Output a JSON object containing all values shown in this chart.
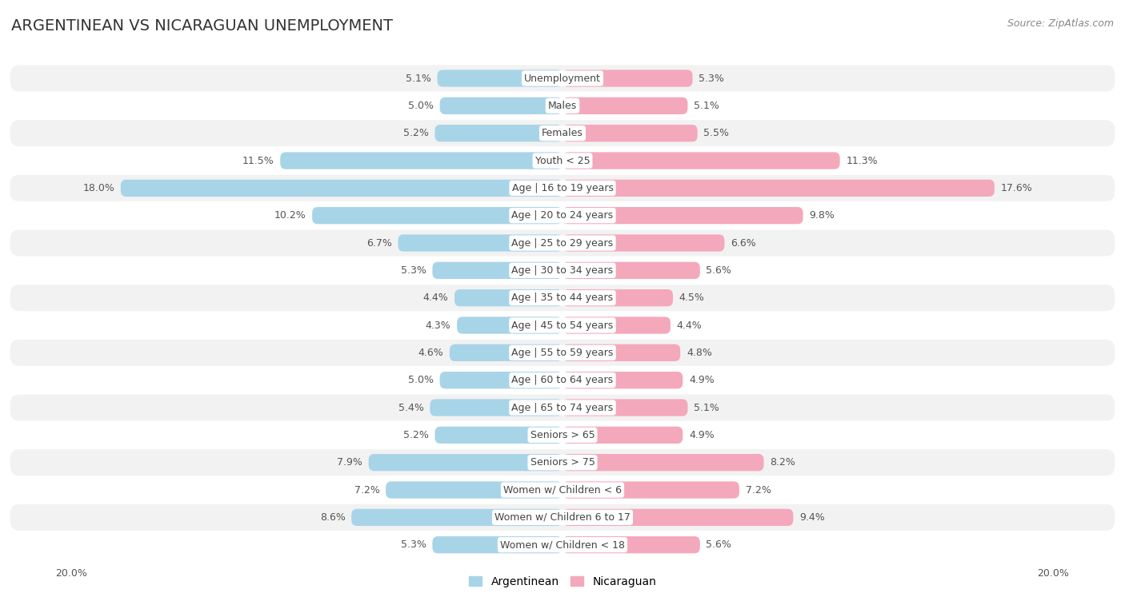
{
  "title": "ARGENTINEAN VS NICARAGUAN UNEMPLOYMENT",
  "source": "Source: ZipAtlas.com",
  "categories": [
    "Unemployment",
    "Males",
    "Females",
    "Youth < 25",
    "Age | 16 to 19 years",
    "Age | 20 to 24 years",
    "Age | 25 to 29 years",
    "Age | 30 to 34 years",
    "Age | 35 to 44 years",
    "Age | 45 to 54 years",
    "Age | 55 to 59 years",
    "Age | 60 to 64 years",
    "Age | 65 to 74 years",
    "Seniors > 65",
    "Seniors > 75",
    "Women w/ Children < 6",
    "Women w/ Children 6 to 17",
    "Women w/ Children < 18"
  ],
  "argentinean": [
    5.1,
    5.0,
    5.2,
    11.5,
    18.0,
    10.2,
    6.7,
    5.3,
    4.4,
    4.3,
    4.6,
    5.0,
    5.4,
    5.2,
    7.9,
    7.2,
    8.6,
    5.3
  ],
  "nicaraguan": [
    5.3,
    5.1,
    5.5,
    11.3,
    17.6,
    9.8,
    6.6,
    5.6,
    4.5,
    4.4,
    4.8,
    4.9,
    5.1,
    4.9,
    8.2,
    7.2,
    9.4,
    5.6
  ],
  "argentinean_color": "#a8d4e8",
  "nicaraguan_color": "#f4a8bc",
  "background_color": "#ffffff",
  "row_color_odd": "#f2f2f2",
  "row_color_even": "#ffffff",
  "max_val": 20.0,
  "bar_height": 0.62,
  "label_fontsize": 9.0,
  "category_fontsize": 9.0,
  "title_fontsize": 14,
  "legend_fontsize": 10,
  "source_fontsize": 9
}
